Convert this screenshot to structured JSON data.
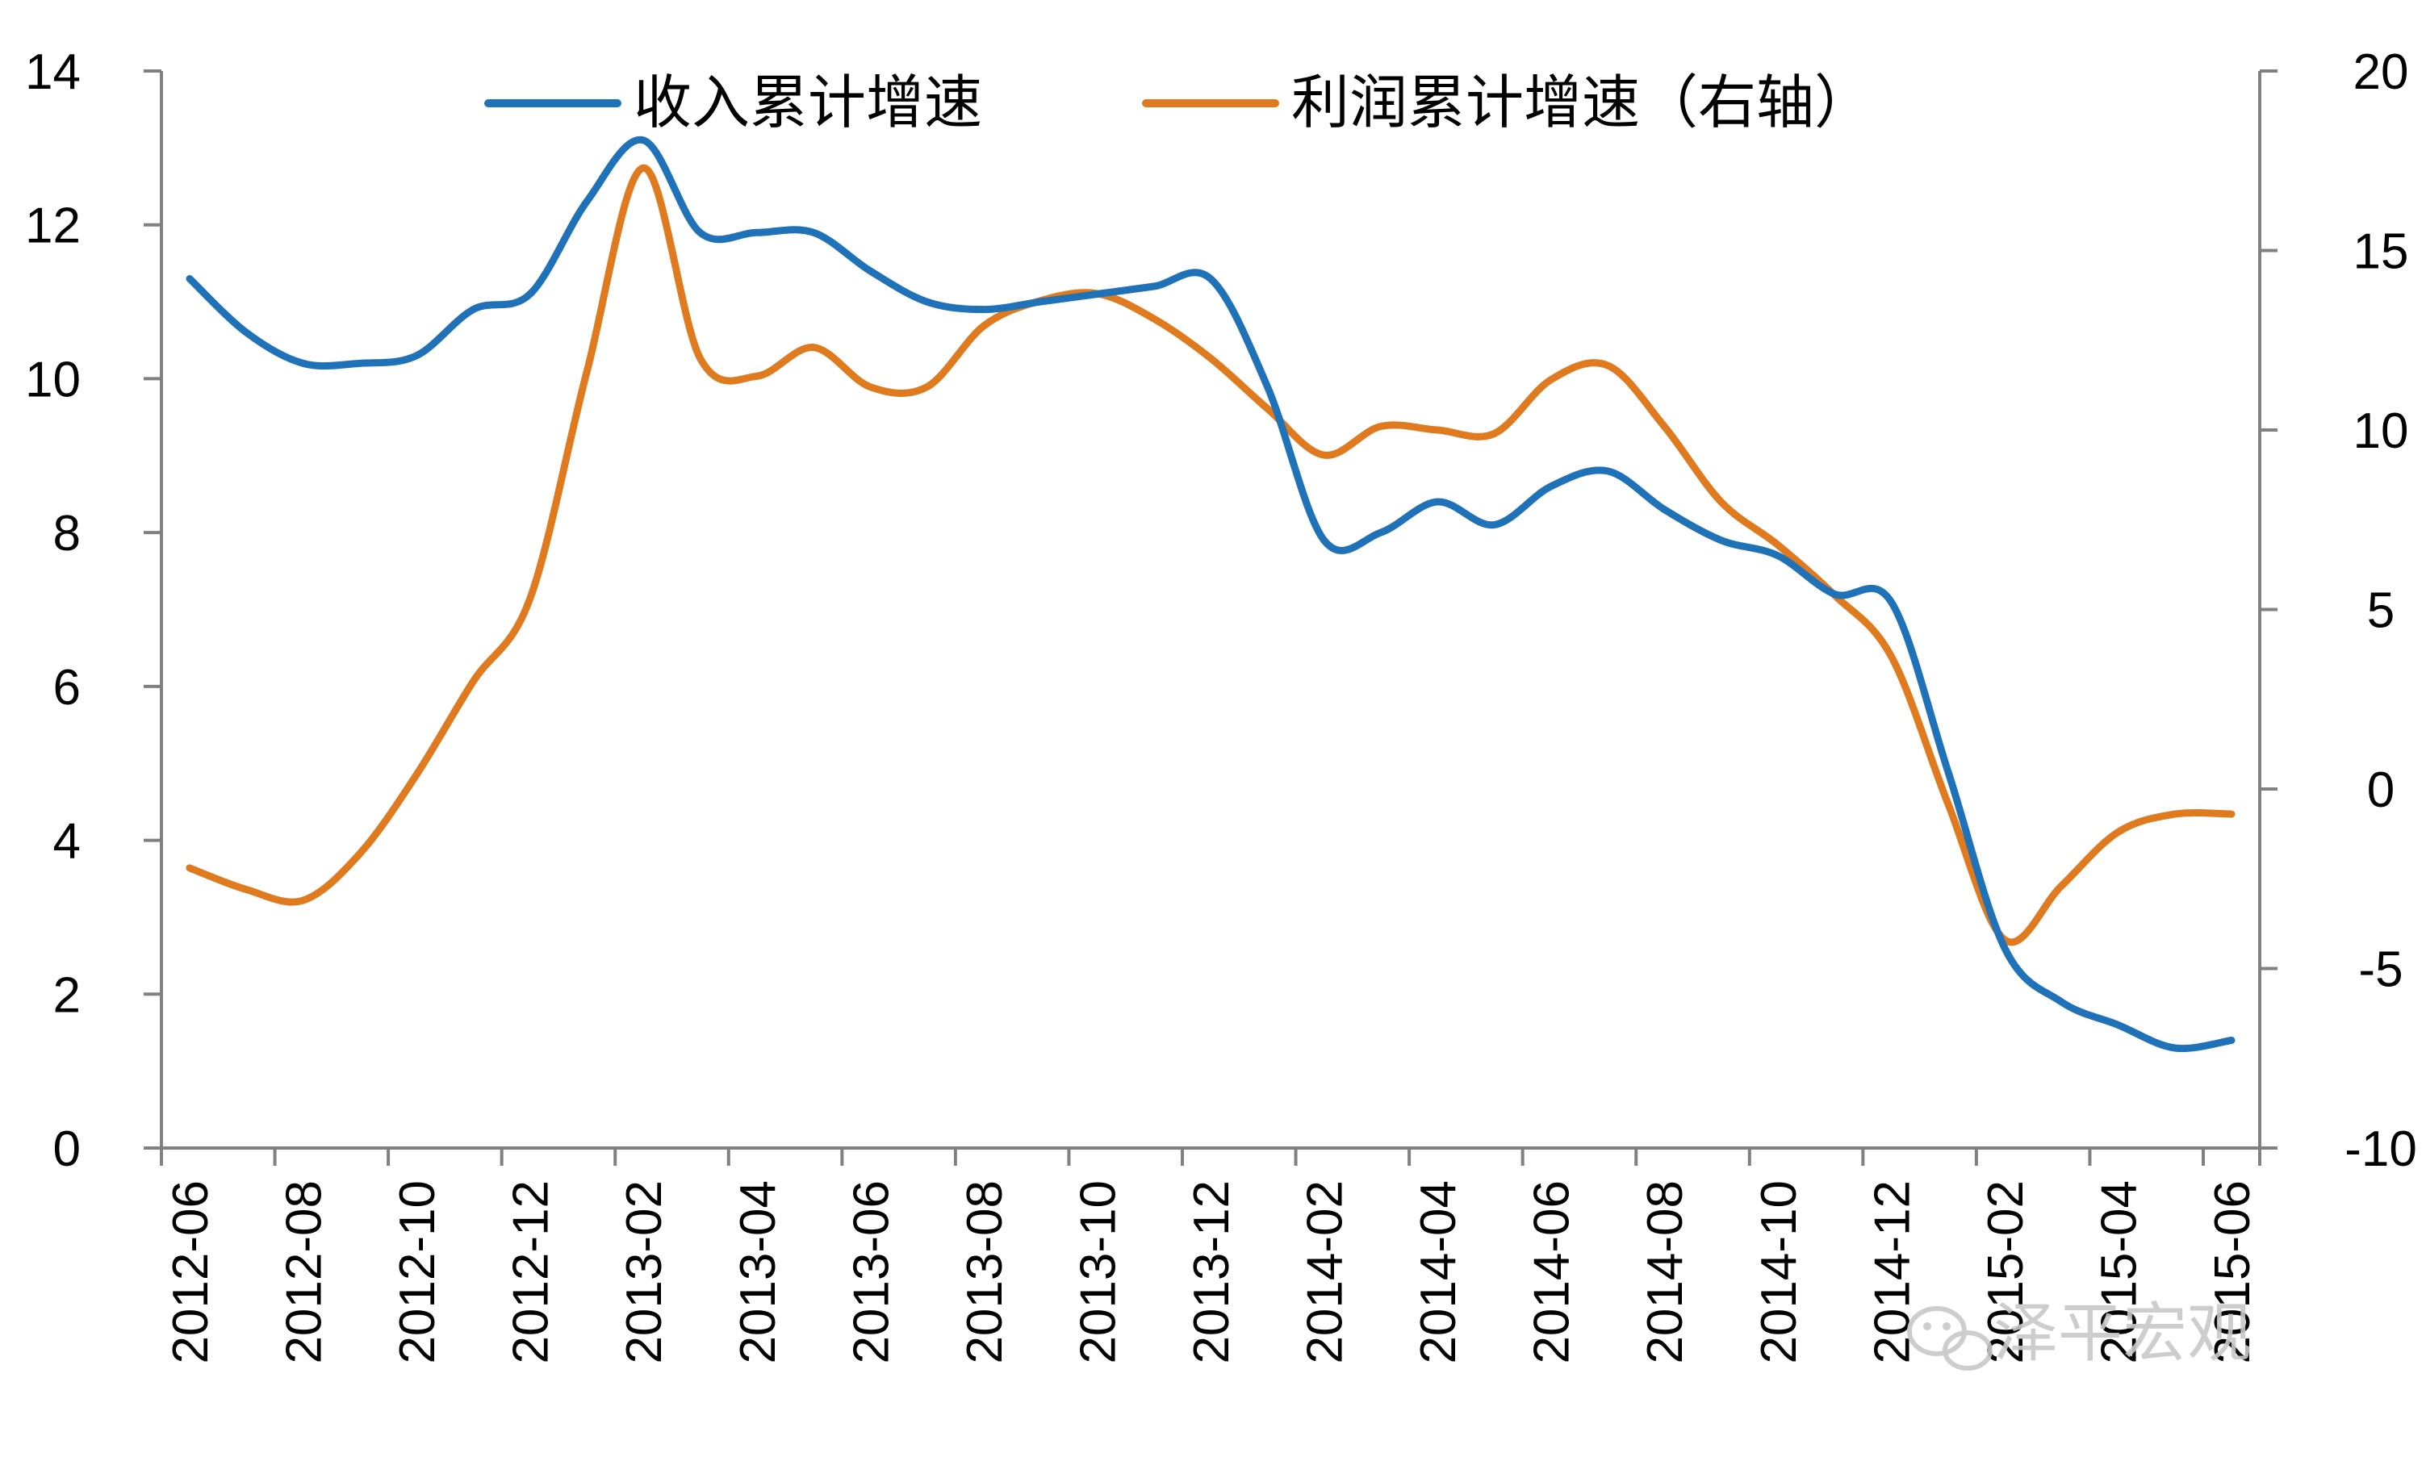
{
  "chart_data": {
    "type": "line",
    "title": "",
    "xlabel": "",
    "ylabel": "",
    "x": [
      "2012-06",
      "2012-07",
      "2012-08",
      "2012-09",
      "2012-10",
      "2012-11",
      "2012-12",
      "2013-01",
      "2013-02",
      "2013-03",
      "2013-04",
      "2013-05",
      "2013-06",
      "2013-07",
      "2013-08",
      "2013-09",
      "2013-10",
      "2013-11",
      "2013-12",
      "2014-01",
      "2014-02",
      "2014-03",
      "2014-04",
      "2014-05",
      "2014-06",
      "2014-07",
      "2014-08",
      "2014-09",
      "2014-10",
      "2014-11",
      "2014-12",
      "2015-01",
      "2015-02",
      "2015-03",
      "2015-04",
      "2015-05",
      "2015-06"
    ],
    "x_tick_labels": [
      "2012-06",
      "2012-08",
      "2012-10",
      "2012-12",
      "2013-02",
      "2013-04",
      "2013-06",
      "2013-08",
      "2013-10",
      "2013-12",
      "2014-02",
      "2014-04",
      "2014-06",
      "2014-08",
      "2014-10",
      "2014-12",
      "2015-02",
      "2015-04",
      "2015-06"
    ],
    "y_left": {
      "ylim": [
        0,
        14
      ],
      "ticks": [
        "0",
        "2",
        "4",
        "6",
        "8",
        "10",
        "12",
        "14"
      ]
    },
    "y_right": {
      "ylim": [
        -10,
        20
      ],
      "ticks": [
        "-10",
        "-5",
        "0",
        "5",
        "10",
        "15",
        "20"
      ]
    },
    "grid": false,
    "legend_position": "top",
    "series": [
      {
        "name": "收入累计增速",
        "axis": "left",
        "color": "#1f72b8",
        "values": [
          11.3,
          10.6,
          10.2,
          10.2,
          10.3,
          10.9,
          11.1,
          12.3,
          13.1,
          11.9,
          11.9,
          11.9,
          11.4,
          11.0,
          10.9,
          11.0,
          11.1,
          11.2,
          11.3,
          9.9,
          7.9,
          8.0,
          8.4,
          8.1,
          8.6,
          8.8,
          8.3,
          7.9,
          7.7,
          7.2,
          7.1,
          4.9,
          2.6,
          1.9,
          1.6,
          1.3,
          1.4
        ]
      },
      {
        "name": "利润累计增速（右轴）",
        "axis": "right",
        "color": "#e07a1f",
        "values": [
          -2.2,
          -2.8,
          -3.1,
          -1.8,
          0.4,
          3.0,
          5.3,
          11.6,
          17.3,
          12.0,
          11.5,
          12.3,
          11.2,
          11.2,
          12.9,
          13.6,
          13.8,
          13.1,
          12.0,
          10.6,
          9.3,
          10.1,
          10.0,
          9.9,
          11.4,
          11.8,
          10.1,
          8.0,
          6.8,
          5.4,
          3.7,
          -0.4,
          -4.2,
          -2.7,
          -1.2,
          -0.7,
          -0.7
        ]
      }
    ]
  },
  "watermark": {
    "text": "泽平宏观",
    "icon": "wechat-icon"
  }
}
